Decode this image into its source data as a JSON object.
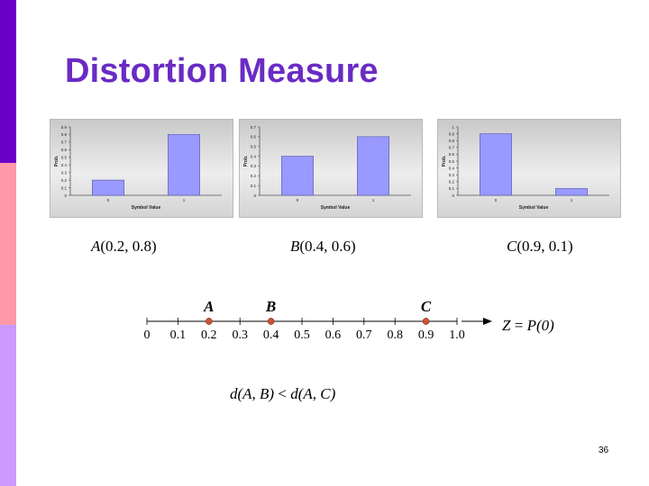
{
  "slide": {
    "title": "Distortion Measure",
    "page_number": "36",
    "colors": {
      "title": "#6a2bc4",
      "bar": "#9999ff",
      "point": "#cc5533"
    }
  },
  "chart_data": [
    {
      "type": "bar",
      "categories": [
        "0",
        "1"
      ],
      "values": [
        0.2,
        0.8
      ],
      "xlabel": "Symbol Value",
      "ylabel": "Prob.",
      "ylim": [
        0,
        0.9
      ],
      "yticks": [
        "0",
        "0.1",
        "0.2",
        "0.3",
        "0.4",
        "0.5",
        "0.6",
        "0.7",
        "0.8",
        "0.9"
      ]
    },
    {
      "type": "bar",
      "categories": [
        "0",
        "1"
      ],
      "values": [
        0.4,
        0.6
      ],
      "xlabel": "Symbol Value",
      "ylabel": "Prob.",
      "ylim": [
        0,
        0.7
      ],
      "yticks": [
        "0",
        "0.1",
        "0.2",
        "0.3",
        "0.4",
        "0.5",
        "0.6",
        "0.7"
      ]
    },
    {
      "type": "bar",
      "categories": [
        "0",
        "1"
      ],
      "values": [
        0.9,
        0.1
      ],
      "xlabel": "Symbol Value",
      "ylabel": "Prob.",
      "ylim": [
        0,
        1
      ],
      "yticks": [
        "0",
        "0.1",
        "0.2",
        "0.3",
        "0.4",
        "0.5",
        "0.6",
        "0.7",
        "0.8",
        "0.9",
        "1"
      ]
    }
  ],
  "labels": {
    "a_name": "A",
    "a_coords": "(0.2, 0.8)",
    "b_name": "B",
    "b_coords": "(0.4, 0.6)",
    "c_name": "C",
    "c_coords": "(0.9, 0.1)"
  },
  "number_line": {
    "ticks": [
      "0",
      "0.1",
      "0.2",
      "0.3",
      "0.4",
      "0.5",
      "0.6",
      "0.7",
      "0.8",
      "0.9",
      "1.0"
    ],
    "points": [
      {
        "name": "A",
        "value": 0.2
      },
      {
        "name": "B",
        "value": 0.4
      },
      {
        "name": "C",
        "value": 0.9
      }
    ]
  },
  "formulas": {
    "z_lhs": "Z",
    "z_eq": " = ",
    "z_rhs": "P(0)",
    "d_left": "d",
    "d_left_args": "(A, B)",
    "d_op": " < ",
    "d_right": "d",
    "d_right_args": "(A, C)"
  }
}
